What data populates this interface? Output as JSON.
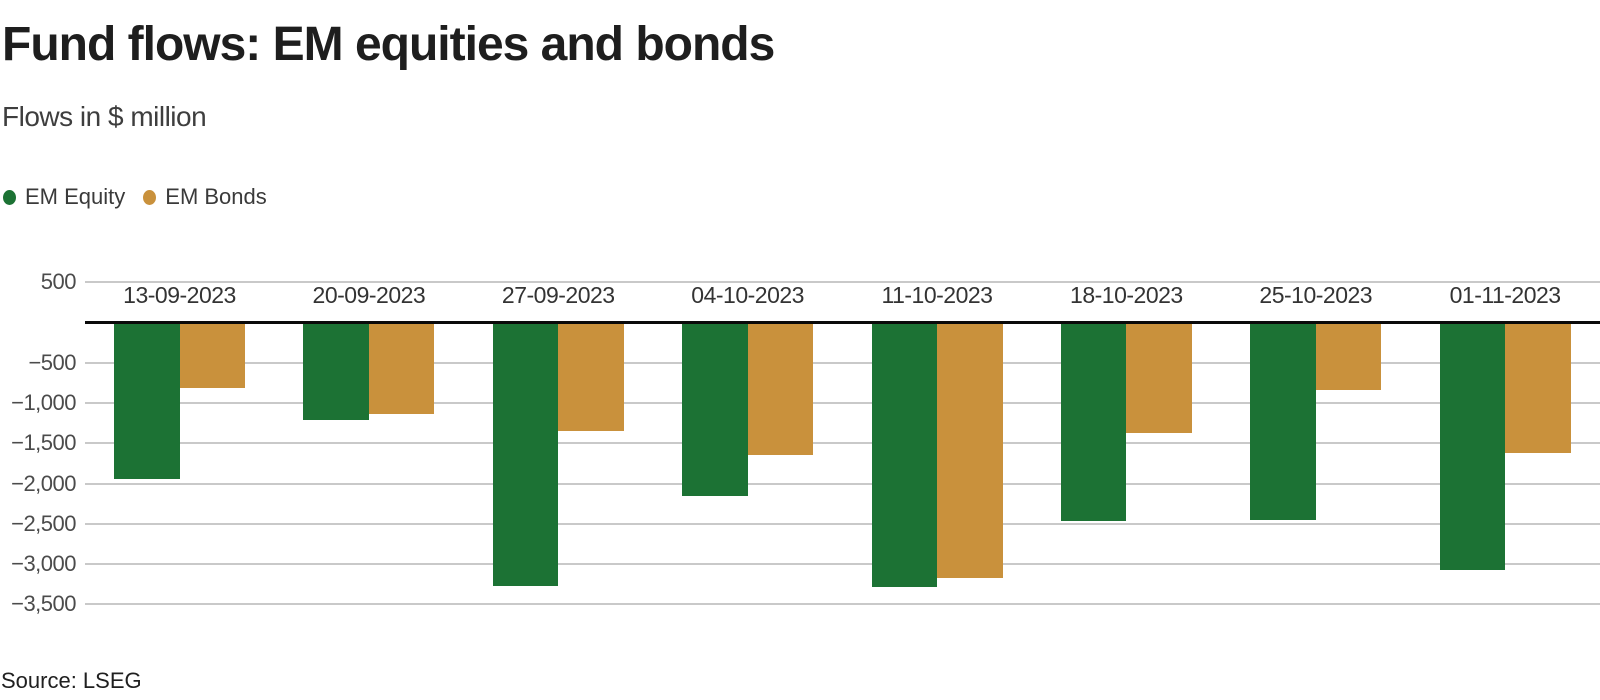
{
  "header": {
    "title": "Fund flows: EM equities and bonds",
    "subtitle": "Flows in $ million"
  },
  "legend": [
    {
      "label": "EM Equity",
      "color": "#1c7234"
    },
    {
      "label": "EM Bonds",
      "color": "#c9913c"
    }
  ],
  "footer": {
    "source": "Source: LSEG"
  },
  "chart_data": {
    "type": "bar",
    "title": "Fund flows: EM equities and bonds",
    "subtitle": "Flows in $ million",
    "ylabel": "Flows in $ million",
    "categories": [
      "13-09-2023",
      "20-09-2023",
      "27-09-2023",
      "04-10-2023",
      "11-10-2023",
      "18-10-2023",
      "25-10-2023",
      "01-11-2023"
    ],
    "series": [
      {
        "name": "EM Equity",
        "color": "#1c7234",
        "values": [
          -1950,
          -1210,
          -3270,
          -2150,
          -3290,
          -2470,
          -2450,
          -3080
        ]
      },
      {
        "name": "EM Bonds",
        "color": "#c9913c",
        "values": [
          -810,
          -1140,
          -1350,
          -1650,
          -3170,
          -1370,
          -840,
          -1620
        ]
      }
    ],
    "ylim": [
      -3500,
      500
    ],
    "y_ticks": [
      {
        "value": 500,
        "label": "500"
      },
      {
        "value": 0,
        "label": ""
      },
      {
        "value": -500,
        "label": "−500"
      },
      {
        "value": -1000,
        "label": "−1,000"
      },
      {
        "value": -1500,
        "label": "−1,500"
      },
      {
        "value": -2000,
        "label": "−2,000"
      },
      {
        "value": -2500,
        "label": "−2,500"
      },
      {
        "value": -3000,
        "label": "−3,000"
      },
      {
        "value": -3500,
        "label": "−3,500"
      }
    ],
    "grid": "horizontal",
    "legend_position": "top-left",
    "zero_line": true,
    "x_labels_position": "inside-top"
  }
}
